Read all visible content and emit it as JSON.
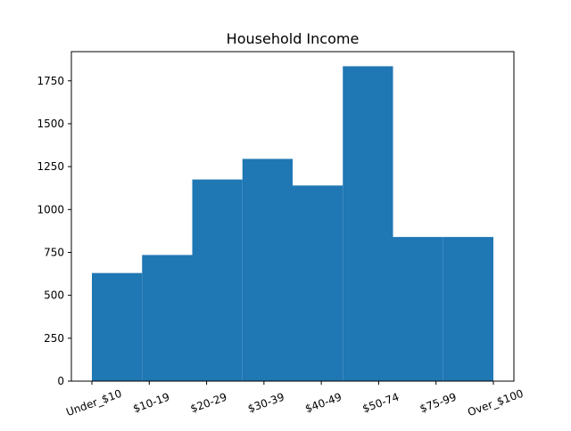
{
  "chart_data": {
    "type": "bar",
    "title": "Household Income",
    "xlabel": "",
    "ylabel": "",
    "bar_color": "#1f77b4",
    "grid": false,
    "x_ticks": [
      "Under_$10",
      "$10-19",
      "$20-29",
      "$30-39",
      "$40-49",
      "$50-74",
      "$75-99",
      "Over_$100"
    ],
    "y_ticks": [
      0,
      250,
      500,
      750,
      1000,
      1250,
      1500,
      1750
    ],
    "ylim": [
      0,
      1920
    ],
    "bins": [
      {
        "x_start": 0,
        "x_end": 0.875,
        "value": 630
      },
      {
        "x_start": 0.875,
        "x_end": 1.75,
        "value": 735
      },
      {
        "x_start": 1.75,
        "x_end": 2.625,
        "value": 1175
      },
      {
        "x_start": 2.625,
        "x_end": 3.5,
        "value": 1295
      },
      {
        "x_start": 3.5,
        "x_end": 4.375,
        "value": 1140
      },
      {
        "x_start": 4.375,
        "x_end": 5.25,
        "value": 1835
      },
      {
        "x_start": 5.25,
        "x_end": 6.125,
        "value": 840
      },
      {
        "x_start": 6.125,
        "x_end": 7,
        "value": 840
      }
    ]
  }
}
